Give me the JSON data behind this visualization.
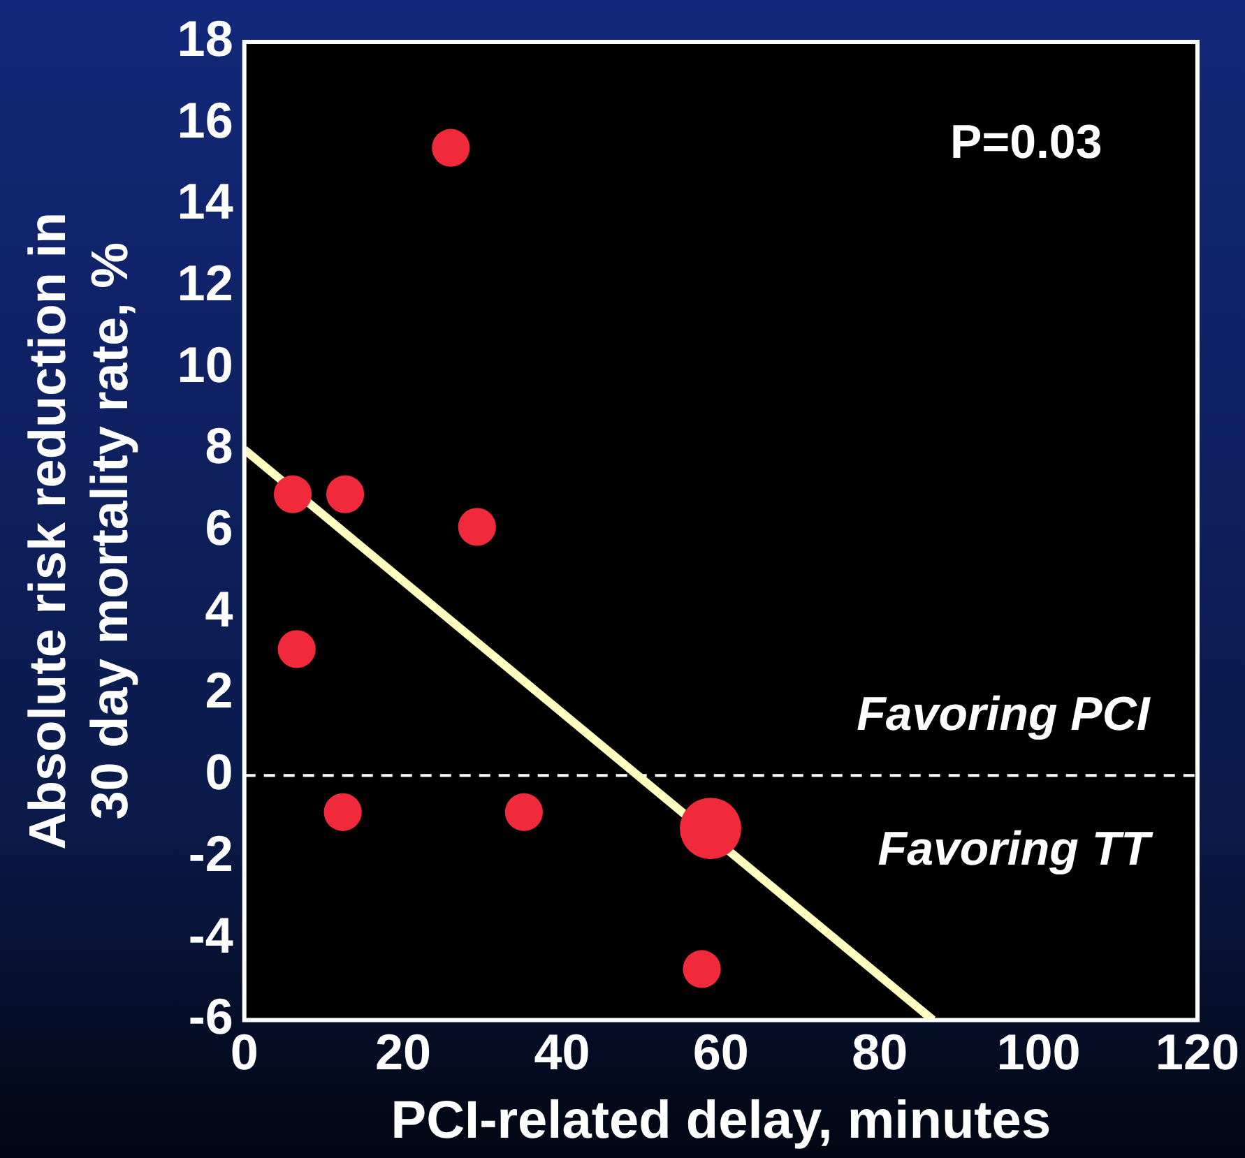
{
  "chart_data": {
    "type": "bubble",
    "xlabel": "PCI-related delay, minutes",
    "ylabel": "Absolute risk reduction in 30 day mortality rate, %",
    "xlim": [
      0,
      120
    ],
    "xticks": [
      0,
      20,
      40,
      60,
      80,
      100,
      120
    ],
    "ylim": [
      -6,
      18
    ],
    "yticks": [
      -6,
      -4,
      -2,
      0,
      2,
      4,
      6,
      8,
      10,
      12,
      14,
      16,
      18
    ],
    "series": [
      {
        "color": "#f02a3a",
        "x": [
          6.1,
          12.7,
          26,
          29.3,
          6.6,
          12.4,
          35.2,
          58.7,
          57.6
        ],
        "values": [
          6.9,
          6.9,
          15.4,
          6.1,
          3.1,
          -0.9,
          -0.9,
          -1.3,
          -4.75
        ],
        "sizes": [
          0.38,
          0.38,
          0.38,
          0.38,
          0.38,
          0.38,
          0.38,
          1,
          0.38
        ]
      },
      {
        "type": "line",
        "color": "#ffffc0",
        "x": [
          0,
          86.7
        ],
        "values": [
          8,
          -6
        ],
        "marker": "none"
      }
    ],
    "ref_lines": [
      {
        "axis": "y",
        "value": 0,
        "color": "#ffffff",
        "line_style": "dashed"
      }
    ],
    "annotations": [
      "P=0.03",
      "Favoring PCI",
      "Favoring TT"
    ]
  }
}
